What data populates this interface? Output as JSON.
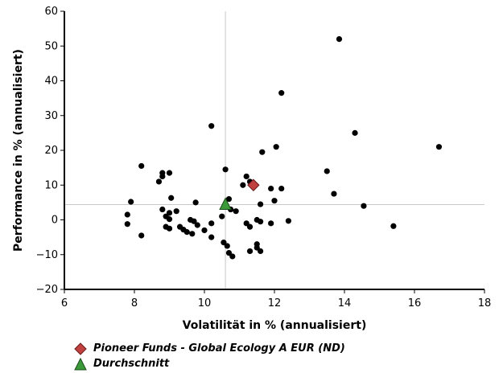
{
  "chart_data": {
    "type": "scatter",
    "xlabel": "Volatilität in % (annualisiert)",
    "ylabel": "Performance in % (annualisiert)",
    "xlim": [
      6,
      18
    ],
    "ylim": [
      -20,
      60
    ],
    "xticks": [
      6,
      8,
      10,
      12,
      14,
      16,
      18
    ],
    "yticks": [
      -20,
      -10,
      0,
      10,
      20,
      30,
      40,
      50,
      60
    ],
    "grid": false,
    "reference_lines": {
      "x": 10.6,
      "y": 4.4
    },
    "legend_position": "bottom-left",
    "series": [
      {
        "name": "",
        "marker": "circle",
        "color": "#000000",
        "points": [
          [
            8.2,
            15.5
          ],
          [
            7.9,
            5.2
          ],
          [
            7.8,
            1.5
          ],
          [
            7.8,
            -1.2
          ],
          [
            8.2,
            -4.5
          ],
          [
            8.7,
            11.0
          ],
          [
            8.8,
            12.5
          ],
          [
            8.8,
            13.5
          ],
          [
            9.0,
            13.5
          ],
          [
            8.8,
            3.0
          ],
          [
            8.9,
            1.0
          ],
          [
            9.0,
            2.0
          ],
          [
            9.0,
            0.2
          ],
          [
            8.9,
            -2.0
          ],
          [
            9.0,
            -2.5
          ],
          [
            9.05,
            6.3
          ],
          [
            9.2,
            2.5
          ],
          [
            9.3,
            -2.0
          ],
          [
            9.4,
            -2.8
          ],
          [
            9.5,
            -3.5
          ],
          [
            9.6,
            0.0
          ],
          [
            9.7,
            -0.4
          ],
          [
            9.8,
            -1.5
          ],
          [
            9.75,
            5.0
          ],
          [
            9.65,
            -4.0
          ],
          [
            10.0,
            -3.0
          ],
          [
            10.2,
            -1.0
          ],
          [
            10.2,
            -5.0
          ],
          [
            10.2,
            27.0
          ],
          [
            10.5,
            1.0
          ],
          [
            10.55,
            -6.5
          ],
          [
            10.65,
            -7.5
          ],
          [
            10.7,
            -9.5
          ],
          [
            10.8,
            -10.5
          ],
          [
            10.6,
            14.5
          ],
          [
            10.7,
            6.0
          ],
          [
            10.75,
            3.0
          ],
          [
            10.9,
            2.5
          ],
          [
            11.1,
            10.0
          ],
          [
            11.2,
            12.5
          ],
          [
            11.3,
            11.0
          ],
          [
            11.2,
            -1.0
          ],
          [
            11.3,
            -2.0
          ],
          [
            11.3,
            -9.0
          ],
          [
            11.5,
            -8.0
          ],
          [
            11.5,
            -7.0
          ],
          [
            11.6,
            -9.0
          ],
          [
            11.5,
            0.0
          ],
          [
            11.6,
            -0.5
          ],
          [
            11.6,
            4.5
          ],
          [
            11.65,
            19.5
          ],
          [
            11.9,
            9.0
          ],
          [
            11.9,
            -1.0
          ],
          [
            12.0,
            5.5
          ],
          [
            12.05,
            21.0
          ],
          [
            12.2,
            36.5
          ],
          [
            12.2,
            9.0
          ],
          [
            12.4,
            -0.3
          ],
          [
            13.5,
            14.0
          ],
          [
            13.7,
            7.5
          ],
          [
            13.85,
            52.0
          ],
          [
            14.3,
            25.0
          ],
          [
            14.55,
            4.0
          ],
          [
            15.4,
            -1.8
          ],
          [
            16.7,
            21.0
          ]
        ]
      },
      {
        "name": "Pioneer Funds - Global Ecology A EUR (ND)",
        "marker": "diamond",
        "color": "#c0413f",
        "points": [
          [
            11.4,
            10.0
          ]
        ]
      },
      {
        "name": "Durchschnitt",
        "marker": "triangle",
        "color": "#3a9a3a",
        "points": [
          [
            10.6,
            4.4
          ]
        ]
      }
    ]
  }
}
